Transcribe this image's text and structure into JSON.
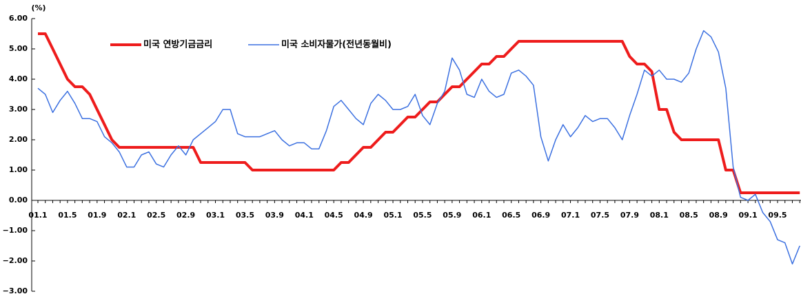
{
  "chart_data": {
    "type": "line",
    "y_axis_label": "(%)",
    "categories": [
      "01.1",
      null,
      null,
      null,
      "01.5",
      null,
      null,
      null,
      "01.9",
      null,
      null,
      null,
      "02.1",
      null,
      null,
      null,
      "02.5",
      null,
      null,
      null,
      "02.9",
      null,
      null,
      null,
      "03.1",
      null,
      null,
      null,
      "03.5",
      null,
      null,
      null,
      "03.9",
      null,
      null,
      null,
      "04.1",
      null,
      null,
      null,
      "04.5",
      null,
      null,
      null,
      "04.9",
      null,
      null,
      null,
      "05.1",
      null,
      null,
      null,
      "05.5",
      null,
      null,
      null,
      "05.9",
      null,
      null,
      null,
      "06.1",
      null,
      null,
      null,
      "06.5",
      null,
      null,
      null,
      "06.9",
      null,
      null,
      null,
      "07.1",
      null,
      null,
      null,
      "07.5",
      null,
      null,
      null,
      "07.9",
      null,
      null,
      null,
      "08.1",
      null,
      null,
      null,
      "08.5",
      null,
      null,
      null,
      "08.9",
      null,
      null,
      null,
      "09.1",
      null,
      null,
      null,
      "09.5",
      null,
      null,
      null
    ],
    "series": [
      {
        "name": "미국 연방기금금리",
        "color": "#ee1c1c",
        "width": 4,
        "values": [
          5.5,
          5.5,
          5.0,
          4.5,
          4.0,
          3.75,
          3.75,
          3.5,
          3.0,
          2.5,
          2.0,
          1.75,
          1.75,
          1.75,
          1.75,
          1.75,
          1.75,
          1.75,
          1.75,
          1.75,
          1.75,
          1.75,
          1.25,
          1.25,
          1.25,
          1.25,
          1.25,
          1.25,
          1.25,
          1.0,
          1.0,
          1.0,
          1.0,
          1.0,
          1.0,
          1.0,
          1.0,
          1.0,
          1.0,
          1.0,
          1.0,
          1.25,
          1.25,
          1.5,
          1.75,
          1.75,
          2.0,
          2.25,
          2.25,
          2.5,
          2.75,
          2.75,
          3.0,
          3.25,
          3.25,
          3.5,
          3.75,
          3.75,
          4.0,
          4.25,
          4.5,
          4.5,
          4.75,
          4.75,
          5.0,
          5.25,
          5.25,
          5.25,
          5.25,
          5.25,
          5.25,
          5.25,
          5.25,
          5.25,
          5.25,
          5.25,
          5.25,
          5.25,
          5.25,
          5.25,
          4.75,
          4.5,
          4.5,
          4.25,
          3.0,
          3.0,
          2.25,
          2.0,
          2.0,
          2.0,
          2.0,
          2.0,
          2.0,
          1.0,
          1.0,
          0.25,
          0.25,
          0.25,
          0.25,
          0.25,
          0.25,
          0.25,
          0.25,
          0.25
        ]
      },
      {
        "name": "미국 소비자물가(전년동월비)",
        "color": "#3a6fe0",
        "width": 1.5,
        "values": [
          3.7,
          3.5,
          2.9,
          3.3,
          3.6,
          3.2,
          2.7,
          2.7,
          2.6,
          2.1,
          1.9,
          1.6,
          1.1,
          1.1,
          1.5,
          1.6,
          1.2,
          1.1,
          1.5,
          1.8,
          1.5,
          2.0,
          2.2,
          2.4,
          2.6,
          3.0,
          3.0,
          2.2,
          2.1,
          2.1,
          2.1,
          2.2,
          2.3,
          2.0,
          1.8,
          1.9,
          1.9,
          1.7,
          1.7,
          2.3,
          3.1,
          3.3,
          3.0,
          2.7,
          2.5,
          3.2,
          3.5,
          3.3,
          3.0,
          3.0,
          3.1,
          3.5,
          2.8,
          2.5,
          3.2,
          3.6,
          4.7,
          4.3,
          3.5,
          3.4,
          4.0,
          3.6,
          3.4,
          3.5,
          4.2,
          4.3,
          4.1,
          3.8,
          2.1,
          1.3,
          2.0,
          2.5,
          2.1,
          2.4,
          2.8,
          2.6,
          2.7,
          2.7,
          2.4,
          2.0,
          2.8,
          3.5,
          4.3,
          4.1,
          4.3,
          4.0,
          4.0,
          3.9,
          4.2,
          5.0,
          5.6,
          5.4,
          4.9,
          3.7,
          1.1,
          0.1,
          0.0,
          0.2,
          -0.4,
          -0.7,
          -1.3,
          -1.4,
          -2.1,
          -1.5
        ]
      }
    ],
    "ylim": [
      -3,
      6
    ],
    "yticks": [
      {
        "value": -3,
        "label": "−3.00"
      },
      {
        "value": -2,
        "label": "−2.00"
      },
      {
        "value": -1,
        "label": "−1.00"
      },
      {
        "value": 0,
        "label": "0.00"
      },
      {
        "value": 1,
        "label": "1.00"
      },
      {
        "value": 2,
        "label": "2.00"
      },
      {
        "value": 3,
        "label": "3.00"
      },
      {
        "value": 4,
        "label": "4.00"
      },
      {
        "value": 5,
        "label": "5.00"
      },
      {
        "value": 6,
        "label": "6.00"
      }
    ],
    "legend": "top"
  }
}
